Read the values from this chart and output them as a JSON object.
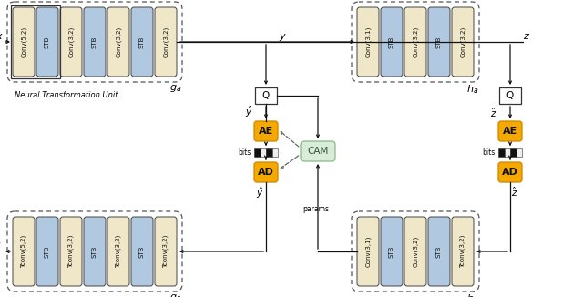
{
  "fig_width": 6.4,
  "fig_height": 3.26,
  "dpi": 100,
  "bg_color": "#ffffff",
  "beige_color": "#f0e6c8",
  "blue_color": "#b0c8e0",
  "orange_color": "#f5a800",
  "white_color": "#ffffff",
  "cam_color": "#d8ecd8",
  "cam_edge": "#8ab88a",
  "black": "#000000",
  "ga_modules": [
    "Conv(5,2)",
    "STB",
    "Conv(3,2)",
    "STB",
    "Conv(3,2)",
    "STB",
    "Conv(3,2)"
  ],
  "ga_types": [
    "beige",
    "blue",
    "beige",
    "blue",
    "beige",
    "blue",
    "beige"
  ],
  "gs_modules": [
    "Tconv(5,2)",
    "STB",
    "Tconv(3,2)",
    "STB",
    "Tconv(3,2)",
    "STB",
    "Tconv(3,2)"
  ],
  "gs_types": [
    "beige",
    "blue",
    "beige",
    "blue",
    "beige",
    "blue",
    "beige"
  ],
  "ha_modules": [
    "Conv(3,1)",
    "STB",
    "Conv(3,2)",
    "STB",
    "Conv(3,2)"
  ],
  "ha_types": [
    "beige",
    "blue",
    "beige",
    "blue",
    "beige"
  ],
  "hs_modules": [
    "Conv(3,1)",
    "STB",
    "Conv(3,2)",
    "STB",
    "Tconv(3,2)"
  ],
  "hs_types": [
    "beige",
    "blue",
    "beige",
    "blue",
    "beige"
  ]
}
